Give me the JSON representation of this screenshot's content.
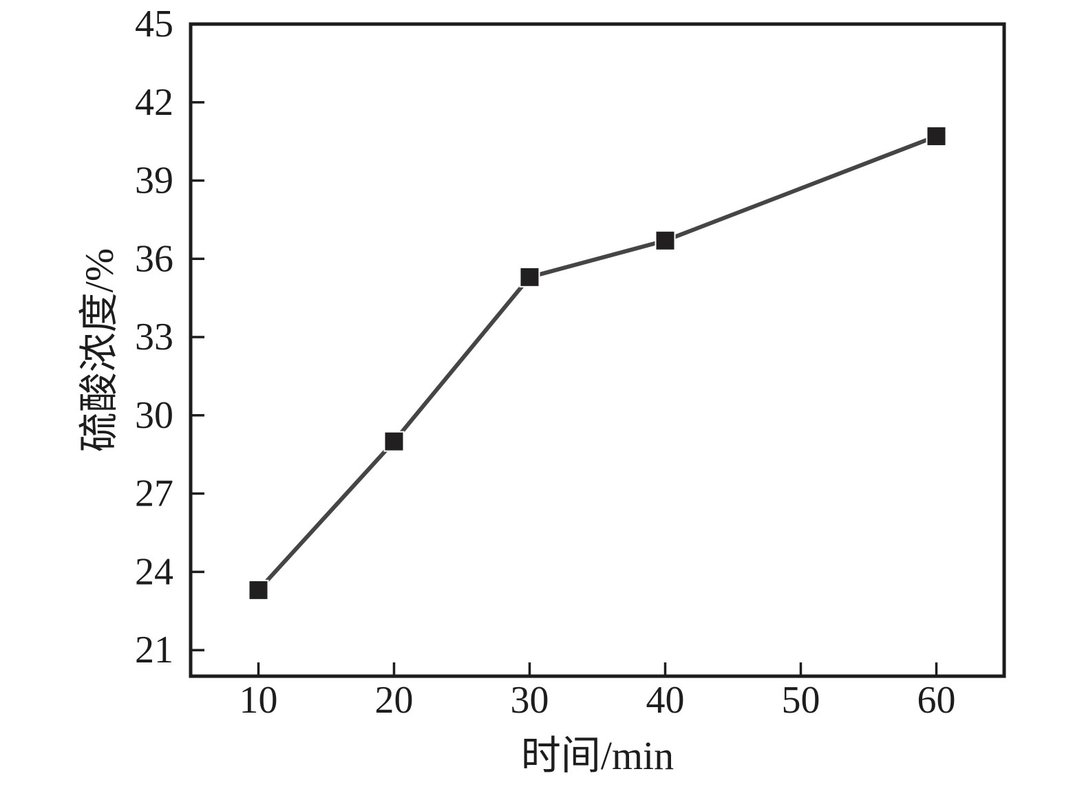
{
  "figure": {
    "background": "#ffffff"
  },
  "chart_data": {
    "type": "line",
    "title": "",
    "xlabel": "时间/min",
    "ylabel": "硫酸浓度/%",
    "x": [
      10,
      20,
      30,
      40,
      60
    ],
    "series": [
      {
        "name": "硫酸浓度",
        "values": [
          23.3,
          29.0,
          35.3,
          36.7,
          40.7
        ]
      }
    ],
    "xlim": [
      5,
      65
    ],
    "ylim": [
      20,
      45
    ],
    "xticks": [
      10,
      20,
      30,
      40,
      50,
      60
    ],
    "yticks": [
      21,
      24,
      27,
      30,
      33,
      36,
      39,
      42,
      45
    ],
    "grid": false,
    "legend": "none",
    "marker": "square",
    "tick_direction": "in",
    "colors": {
      "axis": "#1d1d1d",
      "line": "#454545",
      "marker": "#221f20",
      "marker_edge": "#ffffff",
      "label_text": "#1d1d1d"
    }
  }
}
